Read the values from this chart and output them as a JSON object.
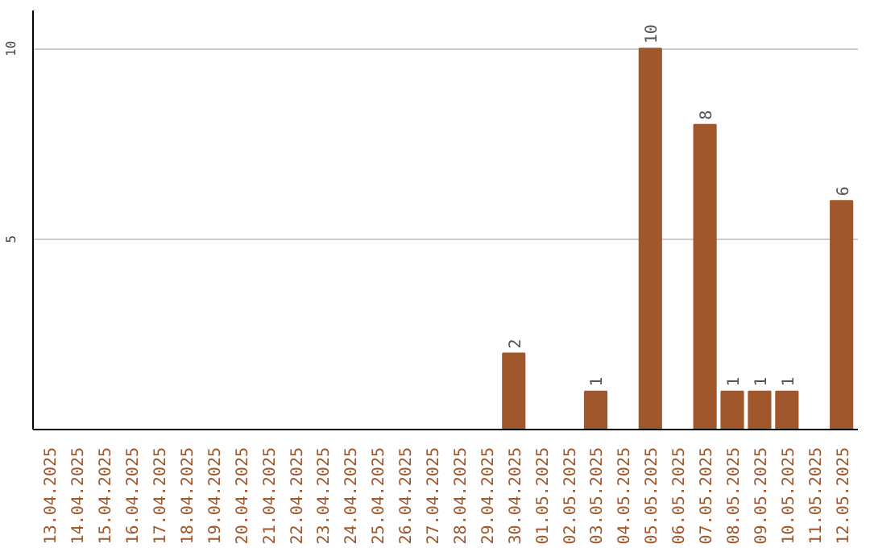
{
  "chart_data": {
    "type": "bar",
    "categories": [
      "13.04.2025",
      "14.04.2025",
      "15.04.2025",
      "16.04.2025",
      "17.04.2025",
      "18.04.2025",
      "19.04.2025",
      "20.04.2025",
      "21.04.2025",
      "22.04.2025",
      "23.04.2025",
      "24.04.2025",
      "25.04.2025",
      "26.04.2025",
      "27.04.2025",
      "28.04.2025",
      "29.04.2025",
      "30.04.2025",
      "01.05.2025",
      "02.05.2025",
      "03.05.2025",
      "04.05.2025",
      "05.05.2025",
      "06.05.2025",
      "07.05.2025",
      "08.05.2025",
      "09.05.2025",
      "10.05.2025",
      "11.05.2025",
      "12.05.2025"
    ],
    "values": [
      0,
      0,
      0,
      0,
      0,
      0,
      0,
      0,
      0,
      0,
      0,
      0,
      0,
      0,
      0,
      0,
      0,
      2,
      0,
      0,
      1,
      0,
      10,
      0,
      8,
      1,
      1,
      1,
      0,
      6
    ],
    "value_labels": [
      null,
      null,
      null,
      null,
      null,
      null,
      null,
      null,
      null,
      null,
      null,
      null,
      null,
      null,
      null,
      null,
      null,
      "2",
      null,
      null,
      "1",
      null,
      "10",
      null,
      "8",
      "1",
      "1",
      "1",
      null,
      "6"
    ],
    "color": "#a0572b",
    "ylim": [
      0,
      11
    ],
    "yticks": [
      5,
      10
    ],
    "grid": "y"
  }
}
